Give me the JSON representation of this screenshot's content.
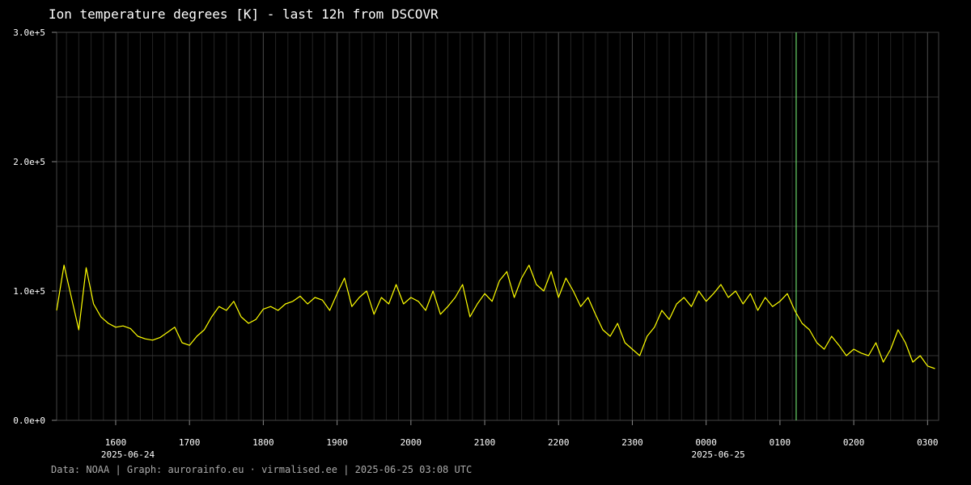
{
  "chart_data": {
    "type": "line",
    "title": "Ion temperature degrees [K] - last 12h from DSCOVR",
    "xlabel": "",
    "ylabel": "",
    "ylim": [
      0,
      300000
    ],
    "x_range_hours": [
      15.2,
      27.15
    ],
    "x_ticks": [
      {
        "label": "1600",
        "hour": 16
      },
      {
        "label": "1700",
        "hour": 17
      },
      {
        "label": "1800",
        "hour": 18
      },
      {
        "label": "1900",
        "hour": 19
      },
      {
        "label": "2000",
        "hour": 20
      },
      {
        "label": "2100",
        "hour": 21
      },
      {
        "label": "2200",
        "hour": 22
      },
      {
        "label": "2300",
        "hour": 23
      },
      {
        "label": "0000",
        "hour": 24
      },
      {
        "label": "0100",
        "hour": 25
      },
      {
        "label": "0200",
        "hour": 26
      },
      {
        "label": "0300",
        "hour": 27
      }
    ],
    "date_labels": [
      {
        "label": "2025-06-24",
        "hour": 16
      },
      {
        "label": "2025-06-25",
        "hour": 24
      }
    ],
    "y_ticks": [
      {
        "label": "0.0e+0",
        "value": 0
      },
      {
        "label": "1.0e+5",
        "value": 100000
      },
      {
        "label": "2.0e+5",
        "value": 200000
      },
      {
        "label": "3.0e+5",
        "value": 300000
      }
    ],
    "grid": true,
    "marker_line_hour": 25.22,
    "marker_color": "#7fff7f",
    "series_color": "#ffff00",
    "series": [
      {
        "name": "",
        "x_hours": [
          15.2,
          15.3,
          15.4,
          15.5,
          15.6,
          15.7,
          15.8,
          15.9,
          16.0,
          16.1,
          16.2,
          16.3,
          16.4,
          16.5,
          16.6,
          16.7,
          16.8,
          16.9,
          17.0,
          17.1,
          17.2,
          17.3,
          17.4,
          17.5,
          17.6,
          17.7,
          17.8,
          17.9,
          18.0,
          18.1,
          18.2,
          18.3,
          18.4,
          18.5,
          18.6,
          18.7,
          18.8,
          18.9,
          19.0,
          19.1,
          19.2,
          19.3,
          19.4,
          19.5,
          19.6,
          19.7,
          19.8,
          19.9,
          20.0,
          20.1,
          20.2,
          20.3,
          20.4,
          20.5,
          20.6,
          20.7,
          20.8,
          20.9,
          21.0,
          21.1,
          21.2,
          21.3,
          21.4,
          21.5,
          21.6,
          21.7,
          21.8,
          21.9,
          22.0,
          22.1,
          22.2,
          22.3,
          22.4,
          22.5,
          22.6,
          22.7,
          22.8,
          22.9,
          23.0,
          23.1,
          23.2,
          23.3,
          23.4,
          23.5,
          23.6,
          23.7,
          23.8,
          23.9,
          24.0,
          24.1,
          24.2,
          24.3,
          24.4,
          24.5,
          24.6,
          24.7,
          24.8,
          24.9,
          25.0,
          25.1,
          25.2,
          25.3,
          25.4,
          25.5,
          25.6,
          25.7,
          25.8,
          25.9,
          26.0,
          26.1,
          26.2,
          26.3,
          26.4,
          26.5,
          26.6,
          26.7,
          26.8,
          26.9,
          27.0,
          27.1
        ],
        "values": [
          85000,
          120000,
          95000,
          70000,
          118000,
          90000,
          80000,
          75000,
          72000,
          73000,
          71000,
          65000,
          63000,
          62000,
          64000,
          68000,
          72000,
          60000,
          58000,
          65000,
          70000,
          80000,
          88000,
          85000,
          92000,
          80000,
          75000,
          78000,
          86000,
          88000,
          85000,
          90000,
          92000,
          96000,
          90000,
          95000,
          93000,
          85000,
          98000,
          110000,
          88000,
          95000,
          100000,
          82000,
          95000,
          90000,
          105000,
          90000,
          95000,
          92000,
          85000,
          100000,
          82000,
          88000,
          95000,
          105000,
          80000,
          90000,
          98000,
          92000,
          108000,
          115000,
          95000,
          110000,
          120000,
          105000,
          100000,
          115000,
          95000,
          110000,
          100000,
          88000,
          95000,
          82000,
          70000,
          65000,
          75000,
          60000,
          55000,
          50000,
          65000,
          72000,
          85000,
          78000,
          90000,
          95000,
          88000,
          100000,
          92000,
          98000,
          105000,
          95000,
          100000,
          90000,
          98000,
          85000,
          95000,
          88000,
          92000,
          98000,
          85000,
          75000,
          70000,
          60000,
          55000,
          65000,
          58000,
          50000,
          55000,
          52000,
          50000,
          60000,
          45000,
          55000,
          70000,
          60000,
          45000,
          50000,
          42000,
          40000
        ]
      }
    ]
  },
  "footer": {
    "credit": "Data: NOAA | Graph: aurorainfo.eu · virmalised.ee | 2025-06-25 03:08 UTC"
  }
}
